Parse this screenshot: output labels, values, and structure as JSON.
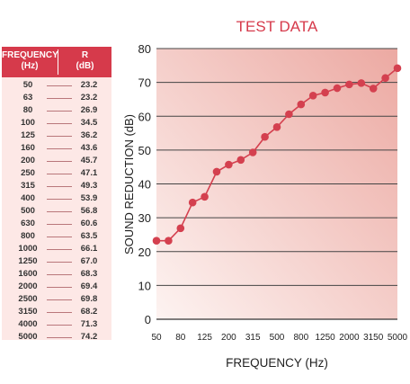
{
  "table": {
    "header_frequency": "FREQUENCY",
    "header_frequency_unit": "(Hz)",
    "header_r": "R",
    "header_r_unit": "(dB)",
    "rows": [
      {
        "f": "50",
        "r": "23.2"
      },
      {
        "f": "63",
        "r": "23.2"
      },
      {
        "f": "80",
        "r": "26.9"
      },
      {
        "f": "100",
        "r": "34.5"
      },
      {
        "f": "125",
        "r": "36.2"
      },
      {
        "f": "160",
        "r": "43.6"
      },
      {
        "f": "200",
        "r": "45.7"
      },
      {
        "f": "250",
        "r": "47.1"
      },
      {
        "f": "315",
        "r": "49.3"
      },
      {
        "f": "400",
        "r": "53.9"
      },
      {
        "f": "500",
        "r": "56.8"
      },
      {
        "f": "630",
        "r": "60.6"
      },
      {
        "f": "800",
        "r": "63.5"
      },
      {
        "f": "1000",
        "r": "66.1"
      },
      {
        "f": "1250",
        "r": "67.0"
      },
      {
        "f": "1600",
        "r": "68.3"
      },
      {
        "f": "2000",
        "r": "69.4"
      },
      {
        "f": "2500",
        "r": "69.8"
      },
      {
        "f": "3150",
        "r": "68.2"
      },
      {
        "f": "4000",
        "r": "71.3"
      },
      {
        "f": "5000",
        "r": "74.2"
      }
    ]
  },
  "chart_data": {
    "type": "line",
    "title": "TEST DATA",
    "xlabel": "FREQUENCY (Hz)",
    "ylabel": "SOUND REDUCTION (dB)",
    "x": [
      50,
      63,
      80,
      100,
      125,
      160,
      200,
      250,
      315,
      400,
      500,
      630,
      800,
      1000,
      1250,
      1600,
      2000,
      2500,
      3150,
      4000,
      5000
    ],
    "y": [
      23.2,
      23.2,
      26.9,
      34.5,
      36.2,
      43.6,
      45.7,
      47.1,
      49.3,
      53.9,
      56.8,
      60.6,
      63.5,
      66.1,
      67.0,
      68.3,
      69.4,
      69.8,
      68.2,
      71.3,
      74.2
    ],
    "xticks": [
      "50",
      "80",
      "125",
      "200",
      "315",
      "500",
      "800",
      "1250",
      "2000",
      "3150",
      "5000"
    ],
    "yticks": [
      "0",
      "10",
      "20",
      "30",
      "40",
      "50",
      "60",
      "70",
      "80"
    ],
    "ylim": [
      0,
      80
    ],
    "x_scale": "one-third-octave bands (log)",
    "grid": "horizontal",
    "colors": {
      "line": "#d4404f",
      "marker": "#d4404f",
      "title": "#d63a4b",
      "plot_bg_light": "#fdf3f1",
      "plot_bg_dark": "#eca9a2",
      "table_header": "#d63a4b",
      "table_bg": "#fde8e6"
    }
  }
}
